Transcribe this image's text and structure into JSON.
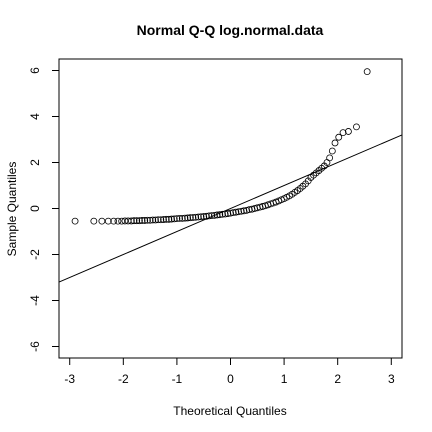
{
  "chart_data": {
    "type": "scatter",
    "title": "Normal Q-Q log.normal.data",
    "xlabel": "Theoretical Quantiles",
    "ylabel": "Sample Quantiles",
    "xlim": [
      -3.2,
      3.2
    ],
    "ylim": [
      -6.5,
      6.5
    ],
    "xticks": [
      -3,
      -2,
      -1,
      0,
      1,
      2,
      3
    ],
    "yticks": [
      -6,
      -4,
      -2,
      0,
      2,
      4,
      6
    ],
    "grid": false,
    "reference_line": {
      "intercept": 0.0,
      "slope": 1.0
    },
    "points": {
      "x": [
        -2.9,
        -2.55,
        -2.4,
        -2.28,
        -2.18,
        -2.1,
        -2.03,
        -1.97,
        -1.91,
        -1.85,
        -1.8,
        -1.75,
        -1.7,
        -1.65,
        -1.6,
        -1.55,
        -1.5,
        -1.45,
        -1.4,
        -1.35,
        -1.3,
        -1.25,
        -1.2,
        -1.15,
        -1.1,
        -1.05,
        -1.0,
        -0.95,
        -0.9,
        -0.85,
        -0.8,
        -0.75,
        -0.7,
        -0.65,
        -0.6,
        -0.55,
        -0.5,
        -0.45,
        -0.4,
        -0.35,
        -0.3,
        -0.25,
        -0.2,
        -0.15,
        -0.1,
        -0.05,
        0.0,
        0.05,
        0.1,
        0.15,
        0.2,
        0.25,
        0.3,
        0.35,
        0.4,
        0.45,
        0.5,
        0.55,
        0.6,
        0.65,
        0.7,
        0.75,
        0.8,
        0.85,
        0.9,
        0.95,
        1.0,
        1.05,
        1.1,
        1.15,
        1.2,
        1.25,
        1.3,
        1.35,
        1.4,
        1.45,
        1.5,
        1.55,
        1.6,
        1.65,
        1.7,
        1.75,
        1.8,
        1.85,
        1.9,
        1.95,
        2.02,
        2.1,
        2.2,
        2.35,
        2.55
      ],
      "y": [
        -0.55,
        -0.55,
        -0.55,
        -0.55,
        -0.55,
        -0.55,
        -0.55,
        -0.54,
        -0.54,
        -0.54,
        -0.53,
        -0.53,
        -0.53,
        -0.52,
        -0.52,
        -0.51,
        -0.51,
        -0.5,
        -0.5,
        -0.49,
        -0.49,
        -0.48,
        -0.47,
        -0.47,
        -0.46,
        -0.45,
        -0.44,
        -0.43,
        -0.43,
        -0.42,
        -0.41,
        -0.4,
        -0.39,
        -0.38,
        -0.37,
        -0.36,
        -0.35,
        -0.34,
        -0.32,
        -0.31,
        -0.3,
        -0.28,
        -0.27,
        -0.25,
        -0.24,
        -0.22,
        -0.2,
        -0.18,
        -0.16,
        -0.14,
        -0.12,
        -0.1,
        -0.08,
        -0.05,
        -0.03,
        0.0,
        0.03,
        0.06,
        0.09,
        0.12,
        0.16,
        0.2,
        0.24,
        0.28,
        0.33,
        0.38,
        0.43,
        0.49,
        0.55,
        0.62,
        0.7,
        0.78,
        0.87,
        0.97,
        1.07,
        1.2,
        1.35,
        1.45,
        1.55,
        1.65,
        1.75,
        1.85,
        2.0,
        2.2,
        2.5,
        2.85,
        3.1,
        3.3,
        3.35,
        3.55,
        5.95
      ]
    }
  }
}
